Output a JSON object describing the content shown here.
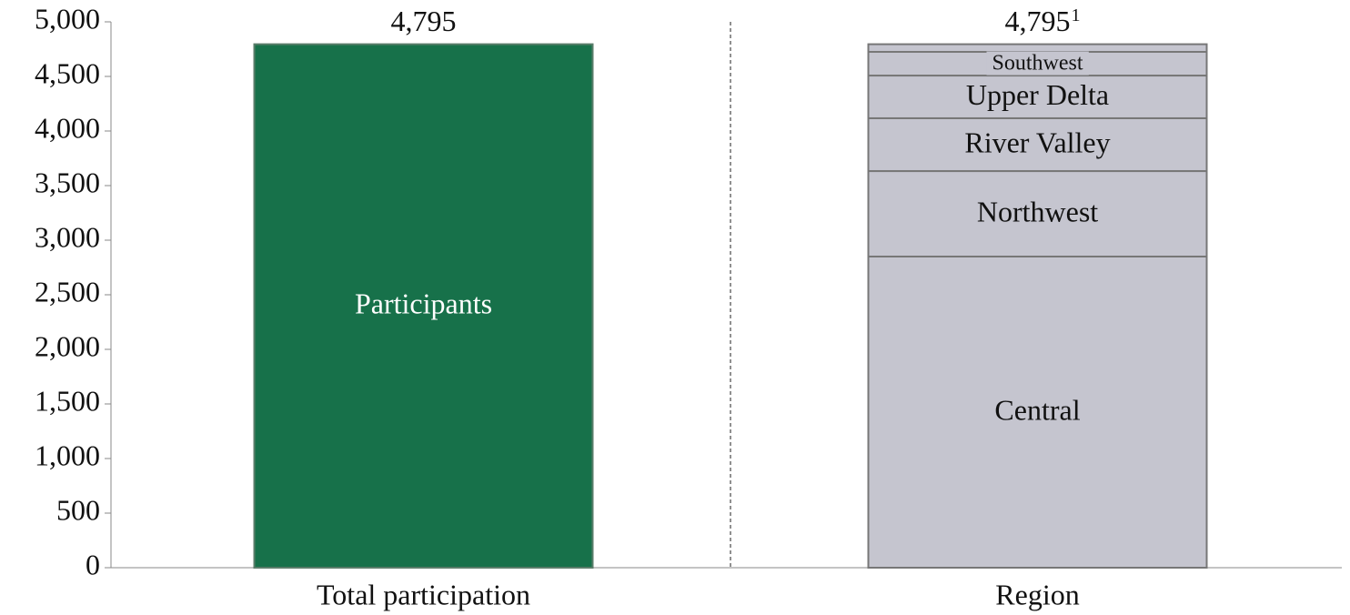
{
  "chart_data": {
    "type": "stacked_bar",
    "categories": [
      "Total participation",
      "Region"
    ],
    "bars": [
      {
        "total": 4795,
        "total_label": "4,795",
        "segments": [
          {
            "name": "Participants",
            "value": 4795,
            "color": "#17714a"
          }
        ]
      },
      {
        "total": 4795,
        "total_label": "4,795",
        "footnote": "1",
        "segments": [
          {
            "name": "Central",
            "value": 2850,
            "color": "#c5c5cf"
          },
          {
            "name": "Northwest",
            "value": 783,
            "color": "#c5c5cf"
          },
          {
            "name": "River Valley",
            "value": 484,
            "color": "#c5c5cf"
          },
          {
            "name": "Upper Delta",
            "value": 391,
            "color": "#c5c5cf"
          },
          {
            "name": "Southwest",
            "value": 217,
            "color": "#c5c5cf"
          },
          {
            "name": null,
            "value": 70,
            "color": "#c5c5cf"
          }
        ]
      }
    ],
    "ylim": [
      0,
      5000
    ],
    "yticks": [
      0,
      500,
      {
        "value": 1000,
        "label": "1,000"
      },
      {
        "value": 1500,
        "label": "1,500"
      },
      {
        "value": 2000,
        "label": "2,000"
      },
      {
        "value": 2500,
        "label": "2,500"
      },
      {
        "value": 3000,
        "label": "3,000"
      },
      {
        "value": 3500,
        "label": "3,500"
      },
      {
        "value": 4000,
        "label": "4,000"
      },
      {
        "value": 4500,
        "label": "4,500"
      },
      {
        "value": 5000,
        "label": "5,000"
      }
    ],
    "grid": false
  }
}
